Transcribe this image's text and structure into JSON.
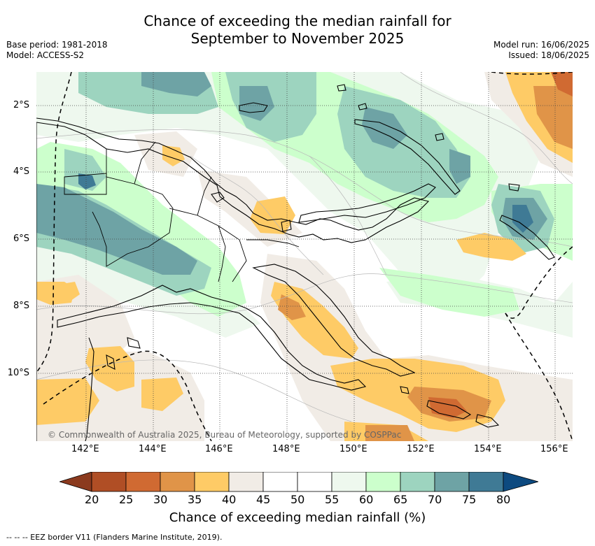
{
  "title": {
    "line1": "Chance of exceeding the median rainfall for",
    "line2": "September to November 2025"
  },
  "meta_left": {
    "base_period": "Base period: 1981-2018",
    "model": "Model: ACCESS-S2"
  },
  "meta_right": {
    "model_run": "Model run: 16/06/2025",
    "issued": "Issued: 18/06/2025"
  },
  "map": {
    "lat_labels": [
      "2°S",
      "4°S",
      "6°S",
      "8°S",
      "10°S"
    ],
    "lon_labels": [
      "142°E",
      "144°E",
      "146°E",
      "148°E",
      "150°E",
      "152°E",
      "154°E",
      "156°E"
    ],
    "copyright": "© Commonwealth of Australia 2025, Bureau of Meteorology, supported by COSPPac"
  },
  "colorbar": {
    "title": "Chance of exceeding median rainfall (%)",
    "ticks": [
      "20",
      "25",
      "30",
      "35",
      "40",
      "45",
      "50",
      "55",
      "60",
      "65",
      "70",
      "75",
      "80"
    ],
    "colors": {
      "lt20": "#8b3a1e",
      "b20_25": "#b04e25",
      "b25_30": "#d06a32",
      "b30_35": "#e09448",
      "b35_40": "#fecb66",
      "b40_45": "#f1ece6",
      "b45_50": "#ffffff",
      "b50_55": "#ffffff",
      "b55_60": "#eef8ee",
      "b60_65": "#ccffcc",
      "b65_70": "#9dd4bf",
      "b70_75": "#6ea3a5",
      "b75_80": "#3f7a95",
      "gt80": "#0d4a80"
    }
  },
  "footer": "--  --  -- EEZ border V11 (Flanders Marine Institute, 2019)."
}
